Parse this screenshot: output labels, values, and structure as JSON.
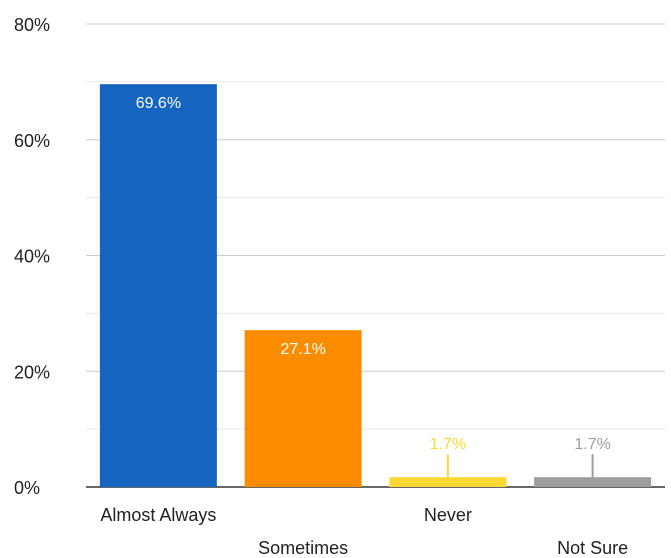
{
  "chart_data": {
    "type": "bar",
    "categories": [
      "Almost Always",
      "Sometimes",
      "Never",
      "Not Sure"
    ],
    "values": [
      69.6,
      27.1,
      1.7,
      1.7
    ],
    "value_labels": [
      "69.6%",
      "27.1%",
      "1.7%",
      "1.7%"
    ],
    "colors": [
      "#1565C0",
      "#FB8C00",
      "#FDD835",
      "#9E9E9E"
    ],
    "label_colors": [
      "#ffffff",
      "#ffffff",
      "#FDD835",
      "#9E9E9E"
    ],
    "ylim": [
      0,
      80
    ],
    "y_ticks": [
      0,
      20,
      40,
      60,
      80
    ],
    "y_tick_labels": [
      "0%",
      "20%",
      "40%",
      "60%",
      "80%"
    ],
    "minor_grid": [
      10,
      30,
      50,
      70
    ],
    "grid": true,
    "title": "",
    "xlabel": "",
    "ylabel": ""
  }
}
